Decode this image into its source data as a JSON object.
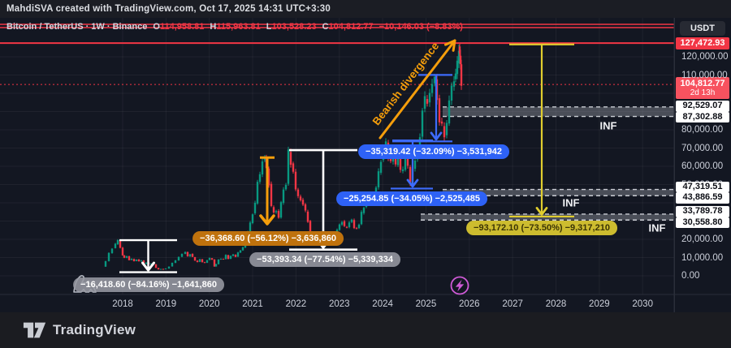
{
  "header": {
    "title": "MahdiSVA created with TradingView.com, Oct 17, 2025 14:31 UTC+3:30"
  },
  "legend": {
    "pair": "Bitcoin / TetherUS · 1W · Binance",
    "ohlc": [
      {
        "k": "O",
        "v": "114,958.81"
      },
      {
        "k": "H",
        "v": "115,963.81"
      },
      {
        "k": "L",
        "v": "103,528.23"
      },
      {
        "k": "C",
        "v": "104,812.77"
      }
    ],
    "change": "−10,146.03 (−8.83%)"
  },
  "axis": {
    "currency_button": "USDT",
    "ath_label": "127,472.93",
    "current_price": "104,812.77",
    "countdown": "2d 13h",
    "ticks": [
      {
        "value": 120000,
        "text": "120,000.00"
      },
      {
        "value": 110000,
        "text": "110,000.00"
      },
      {
        "value": 80000,
        "text": "80,000.00"
      },
      {
        "value": 70000,
        "text": "70,000.00"
      },
      {
        "value": 60000,
        "text": "60,000.00"
      },
      {
        "value": 50000,
        "text": "50,000.00"
      },
      {
        "value": 20000,
        "text": "20,000.00"
      },
      {
        "value": 10000,
        "text": "10,000.00"
      },
      {
        "value": 0,
        "text": "0.00"
      }
    ],
    "zone_labels": [
      "92,529.07",
      "87,302.88",
      "47,319.51",
      "43,886.59",
      "33,789.78",
      "30,558.80"
    ]
  },
  "x_axis": {
    "years": [
      "2018",
      "2019",
      "2020",
      "2021",
      "2022",
      "2023",
      "2024",
      "2025",
      "2026",
      "2027",
      "2028",
      "2029",
      "2030"
    ]
  },
  "footer": {
    "brand": "TradingView"
  },
  "annotations": {
    "bearish_divergence": "Bearish divergence"
  },
  "colors": {
    "background": "#131722",
    "candle_up": "#089981",
    "candle_down": "#f23645",
    "red_line": "#f23645",
    "current_label": "#f7525f",
    "blue": "#2e62f6",
    "orange_arrow": "#f59e0b",
    "orange_label": "#bf720d",
    "yellow": "#e0cd2e",
    "gray_label": "#979aa3",
    "zone_fill": "#979ba5"
  },
  "chart_data": {
    "type": "candlestick",
    "symbol": "Bitcoin / TetherUS (BTCUSDT)",
    "exchange": "Binance",
    "timeframe": "1W",
    "ylim": [
      0,
      137800
    ],
    "x_range_years": [
      2017.6,
      2030.6
    ],
    "grid": true,
    "price_lines": [
      {
        "price": 137778,
        "style": "solid",
        "width": 1.4,
        "note": "upper red line"
      },
      {
        "price": 136000,
        "style": "solid",
        "width": 1.4,
        "note": "upper red line"
      },
      {
        "price": 127472.93,
        "style": "solid",
        "width": 2,
        "note": "all-time-high line"
      },
      {
        "price": 104812.77,
        "style": "dotted",
        "width": 1,
        "note": "current price line"
      }
    ],
    "zones": [
      {
        "top": 92529.07,
        "bottom": 87302.88,
        "label": "INF"
      },
      {
        "top": 47319.51,
        "bottom": 43886.59,
        "label": "INF"
      },
      {
        "top": 33789.78,
        "bottom": 30558.8,
        "label": "INF"
      }
    ],
    "measurements": [
      {
        "id": "drop-2018",
        "color": "white",
        "label": "−16,418.60 (−84.16%) −1,641,860",
        "from_price": 19509,
        "to_price": 3090
      },
      {
        "id": "drop-2021-mid",
        "color": "orange",
        "label": "−36,368.60 (−56.12%) −3,636,860",
        "from_price": 64805,
        "to_price": 28436
      },
      {
        "id": "drop-2022",
        "color": "white",
        "label": "−53,393.34 (−77.54%) −5,339,334",
        "from_price": 68859,
        "to_price": 15466
      },
      {
        "id": "drop-2025-1",
        "color": "blue",
        "label": "−35,319.42 (−32.09%) −3,531,942",
        "from_price": 110070,
        "to_price": 74751
      },
      {
        "id": "drop-2025-2",
        "color": "blue",
        "label": "−25,254.85 (−34.05%) −2,525,485",
        "from_price": 74170,
        "to_price": 48914
      },
      {
        "id": "projected-drop",
        "color": "yellow",
        "label": "−93,172.10 (−73.50%) −9,317,210",
        "from_price": 126764,
        "to_price": 33592
      }
    ],
    "price_path_weekly_k": [
      [
        130,
        5
      ],
      [
        134,
        8
      ],
      [
        138,
        12.5
      ],
      [
        142,
        15
      ],
      [
        145,
        17.5
      ],
      [
        148,
        19.4
      ],
      [
        151,
        15.5
      ],
      [
        153,
        11.2
      ],
      [
        156,
        9.8
      ],
      [
        159,
        10.8
      ],
      [
        162,
        8.6
      ],
      [
        165,
        9.3
      ],
      [
        168,
        8
      ],
      [
        171,
        9
      ],
      [
        174,
        7.9
      ],
      [
        177,
        8.4
      ],
      [
        180,
        6.6
      ],
      [
        183,
        7.2
      ],
      [
        186,
        6.4
      ],
      [
        189,
        6.7
      ],
      [
        192,
        6.3
      ],
      [
        195,
        4.3
      ],
      [
        198,
        3.5
      ],
      [
        201,
        3.8
      ],
      [
        204,
        3.7
      ],
      [
        208,
        4
      ],
      [
        212,
        5.1
      ],
      [
        216,
        7.1
      ],
      [
        220,
        8.4
      ],
      [
        224,
        10.4
      ],
      [
        228,
        12.1
      ],
      [
        231,
        12.9
      ],
      [
        234,
        10.7
      ],
      [
        237,
        11.9
      ],
      [
        240,
        10.3
      ],
      [
        243,
        8.3
      ],
      [
        246,
        7.6
      ],
      [
        249,
        9.1
      ],
      [
        252,
        7.4
      ],
      [
        255,
        7.2
      ],
      [
        258,
        8.6
      ],
      [
        261,
        9.7
      ],
      [
        264,
        8.9
      ],
      [
        266,
        5.1
      ],
      [
        269,
        6.4
      ],
      [
        272,
        8.9
      ],
      [
        275,
        9.4
      ],
      [
        278,
        9.1
      ],
      [
        281,
        11.4
      ],
      [
        284,
        9.3
      ],
      [
        287,
        10.9
      ],
      [
        290,
        11.6
      ],
      [
        293,
        10.4
      ],
      [
        296,
        12.9
      ],
      [
        299,
        13.8
      ],
      [
        302,
        15.6
      ],
      [
        305,
        19.4
      ],
      [
        308,
        24
      ],
      [
        311,
        29
      ],
      [
        314,
        34
      ],
      [
        317,
        40
      ],
      [
        320,
        51
      ],
      [
        323,
        56
      ],
      [
        326,
        63
      ],
      [
        328,
        64.5
      ],
      [
        331,
        59
      ],
      [
        334,
        50
      ],
      [
        337,
        38
      ],
      [
        340,
        34.5
      ],
      [
        343,
        35.8
      ],
      [
        346,
        31.8
      ],
      [
        349,
        40
      ],
      [
        352,
        47.6
      ],
      [
        355,
        50
      ],
      [
        358,
        68.5
      ],
      [
        361,
        61
      ],
      [
        364,
        57.5
      ],
      [
        367,
        47
      ],
      [
        370,
        43.5
      ],
      [
        373,
        41.8
      ],
      [
        376,
        38.9
      ],
      [
        379,
        35.5
      ],
      [
        382,
        29.8
      ],
      [
        385,
        22
      ],
      [
        388,
        19.3
      ],
      [
        391,
        20.6
      ],
      [
        394,
        19.9
      ],
      [
        397,
        18.9
      ],
      [
        400,
        16.1
      ],
      [
        403,
        16.7
      ],
      [
        406,
        17.2
      ],
      [
        409,
        20.9
      ],
      [
        412,
        22.7
      ],
      [
        415,
        23.2
      ],
      [
        418,
        25
      ],
      [
        421,
        28.3
      ],
      [
        424,
        29.6
      ],
      [
        427,
        27
      ],
      [
        430,
        26.5
      ],
      [
        433,
        29.5
      ],
      [
        436,
        30.6
      ],
      [
        439,
        26
      ],
      [
        442,
        26.4
      ],
      [
        445,
        28
      ],
      [
        448,
        34.7
      ],
      [
        451,
        37.5
      ],
      [
        454,
        40
      ],
      [
        457,
        43.9
      ],
      [
        460,
        42.4
      ],
      [
        463,
        43.3
      ],
      [
        466,
        48
      ],
      [
        469,
        57
      ],
      [
        472,
        63
      ],
      [
        475,
        69
      ],
      [
        478,
        73
      ],
      [
        481,
        64.6
      ],
      [
        484,
        63.1
      ],
      [
        487,
        66.6
      ],
      [
        490,
        61.2
      ],
      [
        493,
        67.1
      ],
      [
        496,
        57.6
      ],
      [
        499,
        58.1
      ],
      [
        502,
        64.6
      ],
      [
        505,
        60.1
      ],
      [
        508,
        49.8
      ],
      [
        511,
        59.2
      ],
      [
        514,
        63.3
      ],
      [
        517,
        68.9
      ],
      [
        520,
        76.2
      ],
      [
        523,
        91.2
      ],
      [
        526,
        97.6
      ],
      [
        529,
        94.1
      ],
      [
        532,
        101.2
      ],
      [
        535,
        104.6
      ],
      [
        538,
        108.2
      ],
      [
        541,
        97.2
      ],
      [
        544,
        84.2
      ],
      [
        547,
        82.6
      ],
      [
        550,
        76.3
      ],
      [
        553,
        84.3
      ],
      [
        556,
        95.2
      ],
      [
        559,
        104.2
      ],
      [
        561,
        107.6
      ],
      [
        563,
        110.2
      ],
      [
        565,
        117.2
      ],
      [
        566,
        124.5
      ],
      [
        567,
        121.8
      ],
      [
        568,
        114.9
      ],
      [
        569,
        104.8
      ]
    ]
  }
}
